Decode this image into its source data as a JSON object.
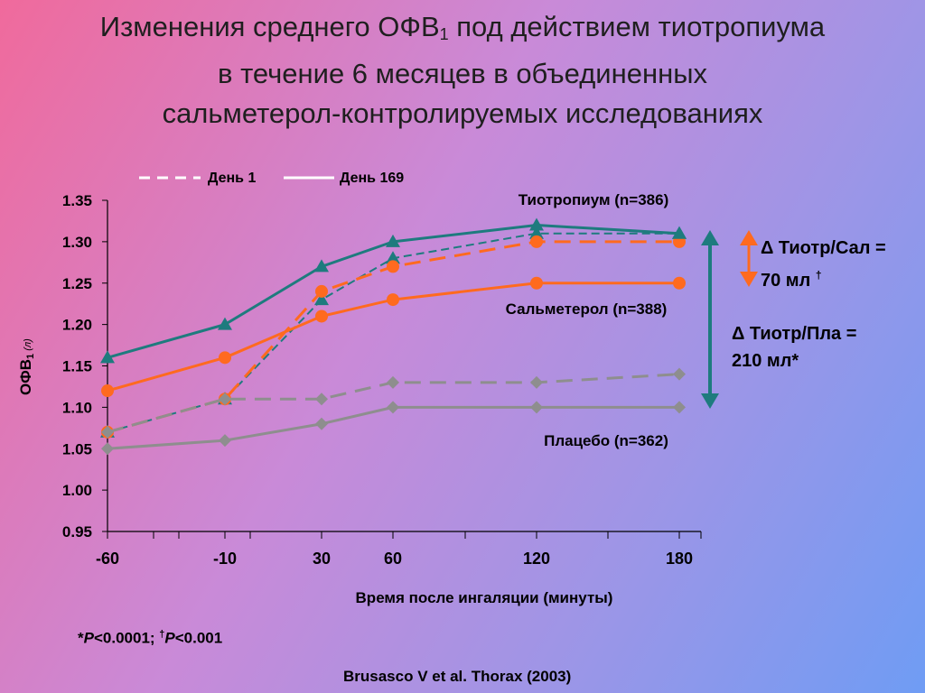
{
  "title": {
    "line1_before_sub": "Изменения среднего ОФВ",
    "line1_sub": "1",
    "line1_after_sub": " под действием тиотропиума",
    "line2": "в течение 6 месяцев в объединенных",
    "line3": "сальметерол-контролируемых исследованиях"
  },
  "legend": [
    {
      "label": "День 1",
      "style": "dashed"
    },
    {
      "label": "День 169",
      "style": "solid"
    }
  ],
  "annotations": {
    "sal_line1": "Δ Тиотр/Сал =",
    "sal_line2": "70 мл",
    "sal_mark": "†",
    "pla_line1": "Δ Тиотр/Пла =",
    "pla_line2": "210 мл*"
  },
  "footnote": {
    "part1": "*",
    "p1": "P",
    "part2": "<0.0001; ",
    "dagger": "†",
    "p2": "P",
    "part3": "<0.001"
  },
  "citation": "Brusasco V et al. Thorax (2003)",
  "colors": {
    "tiotropium": "#1e7b7e",
    "salmeterol": "#ff6a1f",
    "placebo": "#8e8e8e",
    "delta_pla_arrow": "#1e7b7e",
    "delta_sal_arrow": "#ff6a1f"
  },
  "chart_data": {
    "type": "line",
    "xlabel": "Время после ингаляции (минуты)",
    "ylabel_main": "ОФВ",
    "ylabel_sub": "1",
    "ylabel_unit": " (л)",
    "x": [
      -60,
      -10,
      30,
      60,
      120,
      180
    ],
    "ylim": [
      0.95,
      1.35
    ],
    "yticks": [
      "0.95",
      "1.00",
      "1.05",
      "1.10",
      "1.15",
      "1.20",
      "1.25",
      "1.30",
      "1.35"
    ],
    "grid": false,
    "legend_position": "top",
    "series": [
      {
        "name": "Тиотропиум (n=386)",
        "group": "tiotropium",
        "day": "День 169",
        "style": "solid",
        "marker": "triangle",
        "values": [
          1.16,
          1.2,
          1.27,
          1.3,
          1.32,
          1.31
        ]
      },
      {
        "name": "Тиотропиум (n=386)",
        "group": "tiotropium",
        "day": "День 1",
        "style": "dashed",
        "marker": "triangle",
        "values": [
          1.07,
          1.11,
          1.23,
          1.28,
          1.31,
          1.31
        ]
      },
      {
        "name": "Сальметерол (n=388)",
        "group": "salmeterol",
        "day": "День 169",
        "style": "solid",
        "marker": "circle",
        "values": [
          1.12,
          1.16,
          1.21,
          1.23,
          1.25,
          1.25
        ]
      },
      {
        "name": "Сальметерол (n=388)",
        "group": "salmeterol",
        "day": "День 1",
        "style": "dashed",
        "marker": "circle",
        "values": [
          1.07,
          1.11,
          1.24,
          1.27,
          1.3,
          1.3
        ]
      },
      {
        "name": "Плацебо (n=362)",
        "group": "placebo",
        "day": "День 169",
        "style": "solid",
        "marker": "diamond",
        "values": [
          1.05,
          1.06,
          1.08,
          1.1,
          1.1,
          1.1
        ]
      },
      {
        "name": "Плацебо (n=362)",
        "group": "placebo",
        "day": "День 1",
        "style": "dashed",
        "marker": "diamond",
        "values": [
          1.07,
          1.11,
          1.11,
          1.13,
          1.13,
          1.14
        ]
      }
    ],
    "series_labels": [
      {
        "text": "Тиотропиум (n=386)",
        "group": "tiotropium"
      },
      {
        "text": "Сальметерол (n=388)",
        "group": "salmeterol"
      },
      {
        "text": "Плацебо (n=362)",
        "group": "placebo"
      }
    ]
  }
}
